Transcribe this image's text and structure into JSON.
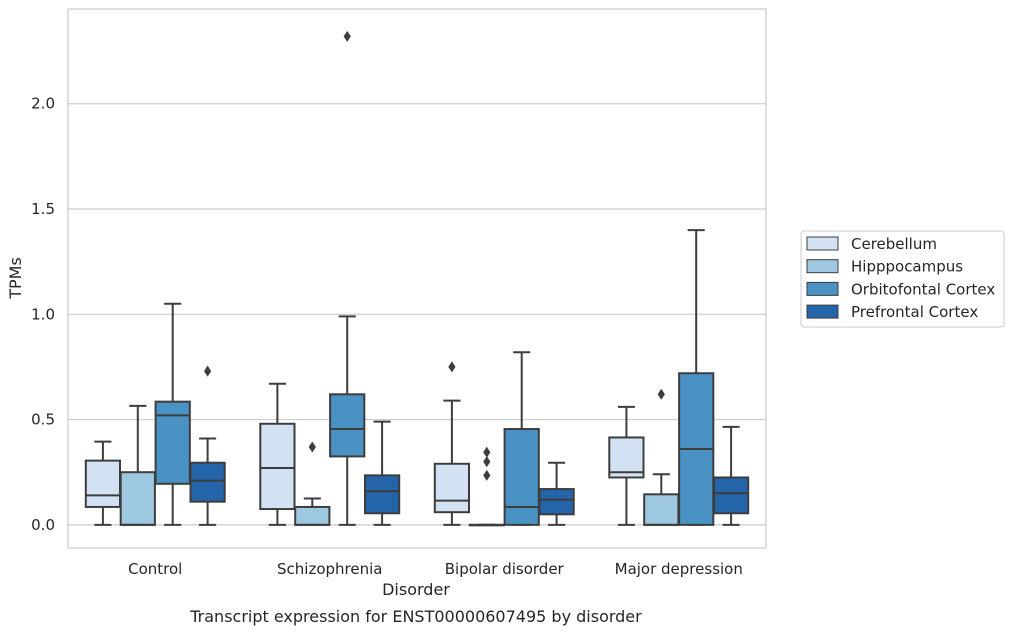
{
  "chart_data": {
    "type": "box",
    "caption": "Transcript expression for ENST00000607495 by disorder",
    "xlabel": "Disorder",
    "ylabel": "TPMs",
    "ylim": [
      -0.11,
      2.45
    ],
    "yticks": [
      "0.0",
      "0.5",
      "1.0",
      "1.5",
      "2.0"
    ],
    "ytick_values": [
      0.0,
      0.5,
      1.0,
      1.5,
      2.0
    ],
    "grid": "horizontal",
    "legend_position": "right",
    "categories": [
      "Control",
      "Schizophrenia",
      "Bipolar disorder",
      "Major depression"
    ],
    "series": [
      {
        "name": "Cerebellum",
        "color": "#d2e2f2",
        "boxes": [
          {
            "whislo": 0.0,
            "q1": 0.085,
            "med": 0.14,
            "q3": 0.305,
            "whishi": 0.395,
            "fliers": []
          },
          {
            "whislo": 0.0,
            "q1": 0.075,
            "med": 0.27,
            "q3": 0.48,
            "whishi": 0.67,
            "fliers": []
          },
          {
            "whislo": 0.0,
            "q1": 0.06,
            "med": 0.115,
            "q3": 0.29,
            "whishi": 0.59,
            "fliers": [
              0.75
            ]
          },
          {
            "whislo": 0.0,
            "q1": 0.225,
            "med": 0.25,
            "q3": 0.415,
            "whishi": 0.56,
            "fliers": []
          }
        ]
      },
      {
        "name": "Hipppocampus",
        "color": "#9dc8e0",
        "boxes": [
          {
            "whislo": 0.0,
            "q1": 0.0,
            "med": 0.0,
            "q3": 0.25,
            "whishi": 0.565,
            "fliers": []
          },
          {
            "whislo": 0.0,
            "q1": 0.0,
            "med": 0.0,
            "q3": 0.085,
            "whishi": 0.125,
            "fliers": [
              0.37
            ]
          },
          {
            "whislo": 0.0,
            "q1": 0.0,
            "med": 0.0,
            "q3": 0.0,
            "whishi": 0.0,
            "fliers": [
              0.235,
              0.3,
              0.345
            ]
          },
          {
            "whislo": 0.0,
            "q1": 0.0,
            "med": 0.0,
            "q3": 0.145,
            "whishi": 0.24,
            "fliers": [
              0.62
            ]
          }
        ]
      },
      {
        "name": "Orbitofontal Cortex",
        "color": "#4a91c4",
        "boxes": [
          {
            "whislo": 0.0,
            "q1": 0.195,
            "med": 0.52,
            "q3": 0.585,
            "whishi": 1.05,
            "fliers": []
          },
          {
            "whislo": 0.0,
            "q1": 0.325,
            "med": 0.455,
            "q3": 0.62,
            "whishi": 0.99,
            "fliers": [
              2.32
            ]
          },
          {
            "whislo": 0.0,
            "q1": 0.0,
            "med": 0.085,
            "q3": 0.455,
            "whishi": 0.82,
            "fliers": []
          },
          {
            "whislo": 0.0,
            "q1": 0.0,
            "med": 0.36,
            "q3": 0.72,
            "whishi": 1.4,
            "fliers": []
          }
        ]
      },
      {
        "name": "Prefrontal Cortex",
        "color": "#2464a8",
        "boxes": [
          {
            "whislo": 0.0,
            "q1": 0.11,
            "med": 0.21,
            "q3": 0.295,
            "whishi": 0.41,
            "fliers": [
              0.73
            ]
          },
          {
            "whislo": 0.0,
            "q1": 0.055,
            "med": 0.16,
            "q3": 0.235,
            "whishi": 0.49,
            "fliers": []
          },
          {
            "whislo": 0.0,
            "q1": 0.05,
            "med": 0.12,
            "q3": 0.17,
            "whishi": 0.295,
            "fliers": []
          },
          {
            "whislo": 0.0,
            "q1": 0.055,
            "med": 0.15,
            "q3": 0.225,
            "whishi": 0.465,
            "fliers": []
          }
        ]
      }
    ]
  }
}
